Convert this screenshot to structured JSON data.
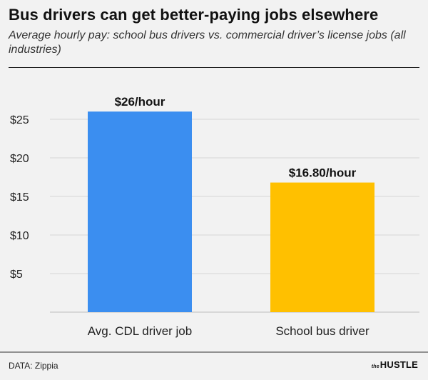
{
  "title": "Bus drivers can get better-paying jobs elsewhere",
  "subtitle": "Average hourly pay: school bus drivers vs. commercial driver’s license jobs (all industries)",
  "source": "DATA: Zippia",
  "brand": {
    "prefix": "the",
    "name": "HUSTLE"
  },
  "colors": {
    "background": "#f2f2f2",
    "grid": "#d6d6d6",
    "axis": "#bdbdbd"
  },
  "chart_data": {
    "type": "bar",
    "categories": [
      "Avg. CDL driver job",
      "School bus driver"
    ],
    "values": [
      26,
      16.8
    ],
    "data_labels": [
      "$26/hour",
      "$16.80/hour"
    ],
    "colors": [
      "#3b8ef0",
      "#ffc000"
    ],
    "y_ticks": [
      5,
      10,
      15,
      20,
      25
    ],
    "y_tick_labels": [
      "$5",
      "$10",
      "$15",
      "$20",
      "$25"
    ],
    "ylim": [
      0,
      27
    ],
    "grid": true,
    "legend": "none"
  }
}
